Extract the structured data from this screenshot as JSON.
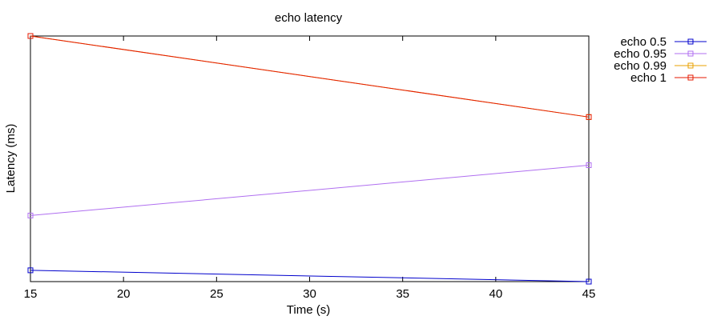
{
  "chart_data": {
    "type": "line",
    "title": "echo latency",
    "xlabel": "Time (s)",
    "ylabel": "Latency (ms)",
    "x": [
      15,
      45
    ],
    "xlim": [
      15,
      45
    ],
    "xticks": [
      15,
      20,
      25,
      30,
      35,
      40,
      45
    ],
    "ylim": [
      0,
      100
    ],
    "grid": false,
    "legend": "outside-top-right",
    "series": [
      {
        "name": "echo 0.5",
        "color": "#0000cc",
        "values": [
          4.6,
          0.0
        ]
      },
      {
        "name": "echo 0.95",
        "color": "#b06ff0",
        "values": [
          26.9,
          47.4
        ]
      },
      {
        "name": "echo 0.99",
        "color": "#e8a000",
        "values": [
          100,
          67.0
        ]
      },
      {
        "name": "echo 1",
        "color": "#e41a00",
        "values": [
          100,
          67.0
        ]
      }
    ]
  }
}
